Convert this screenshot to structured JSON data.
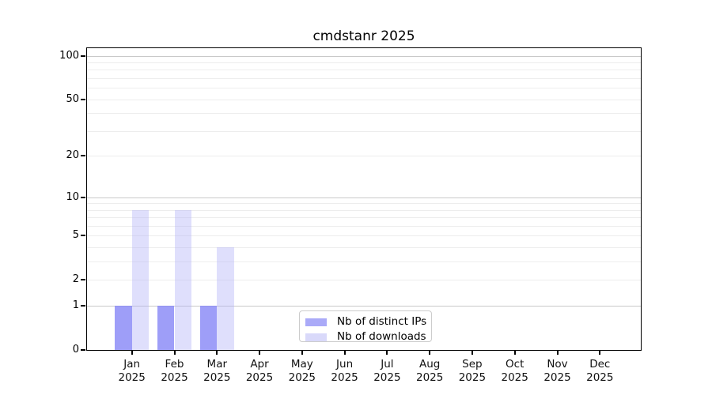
{
  "chart_data": {
    "type": "bar",
    "title": "cmdstanr 2025",
    "categories": [
      "Jan",
      "Feb",
      "Mar",
      "Apr",
      "May",
      "Jun",
      "Jul",
      "Aug",
      "Sep",
      "Oct",
      "Nov",
      "Dec"
    ],
    "category_year": "2025",
    "series": [
      {
        "name": "Nb of distinct IPs",
        "color": "#aaaaf8",
        "fill": "rgba(134,134,246,0.80)",
        "values": [
          1,
          1,
          1,
          0,
          0,
          0,
          0,
          0,
          0,
          0,
          0,
          0
        ]
      },
      {
        "name": "Nb of downloads",
        "color": "#d9d9fa",
        "fill": "rgba(178,178,247,0.42)",
        "values": [
          8,
          8,
          4,
          0,
          0,
          0,
          0,
          0,
          0,
          0,
          0,
          0
        ]
      }
    ],
    "xlabel": "",
    "ylabel": "",
    "yscale": "log1p",
    "ylim": [
      0,
      113
    ],
    "ytick_values": [
      0,
      1,
      2,
      5,
      10,
      20,
      50,
      100
    ],
    "ytick_labels": [
      "0",
      "1",
      "2",
      "5",
      "10",
      "20",
      "50",
      "100"
    ],
    "grid": {
      "on": true,
      "major_values": [
        1,
        10,
        100
      ],
      "minor_values": [
        2,
        3,
        4,
        5,
        6,
        7,
        8,
        9,
        20,
        30,
        40,
        50,
        60,
        70,
        80,
        90
      ],
      "major_color": "#c9c9c9",
      "minor_color": "#ededed"
    },
    "legend": {
      "position": "inside-bottom-center",
      "entries": [
        "Nb of distinct IPs",
        "Nb of downloads"
      ]
    },
    "colors": {
      "background": "#ffffff",
      "axis": "#000000",
      "bar_distinct_ips": "#aaaaf8",
      "bar_downloads": "#d9d9fa"
    }
  }
}
